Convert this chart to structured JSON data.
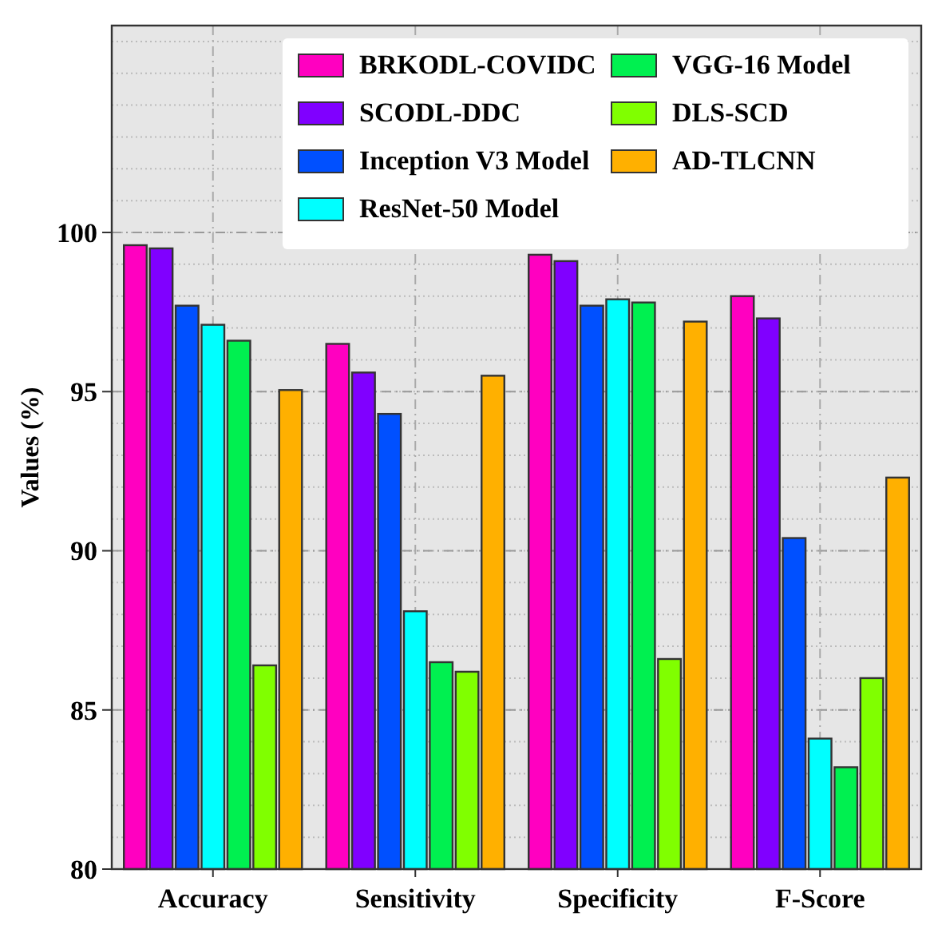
{
  "chart_data": {
    "type": "bar",
    "ylabel": "Values (%)",
    "categories": [
      "Accuracy",
      "Sensitivity",
      "Specificity",
      "F-Score"
    ],
    "series": [
      {
        "name": "BRKODL-COVIDC",
        "color": "#ff00c0",
        "values": [
          99.6,
          96.5,
          99.3,
          98.0
        ]
      },
      {
        "name": "SCODL-DDC",
        "color": "#8000ff",
        "values": [
          99.5,
          95.6,
          99.1,
          97.3
        ]
      },
      {
        "name": "Inception V3 Model",
        "color": "#0050ff",
        "values": [
          97.7,
          94.3,
          97.7,
          90.4
        ]
      },
      {
        "name": "ResNet-50 Model",
        "color": "#00ffff",
        "values": [
          97.1,
          88.1,
          97.9,
          84.1
        ]
      },
      {
        "name": "VGG-16 Model",
        "color": "#00f050",
        "values": [
          96.6,
          86.5,
          97.8,
          83.2
        ]
      },
      {
        "name": "DLS-SCD",
        "color": "#80ff00",
        "values": [
          86.4,
          86.2,
          86.6,
          86.0
        ]
      },
      {
        "name": "AD-TLCNN",
        "color": "#ffb000",
        "values": [
          95.05,
          95.5,
          97.2,
          92.3
        ]
      }
    ],
    "ylim": [
      80,
      106.5
    ],
    "yticks": [
      80,
      85,
      90,
      95,
      100
    ],
    "grid": true,
    "legend": "top right"
  }
}
